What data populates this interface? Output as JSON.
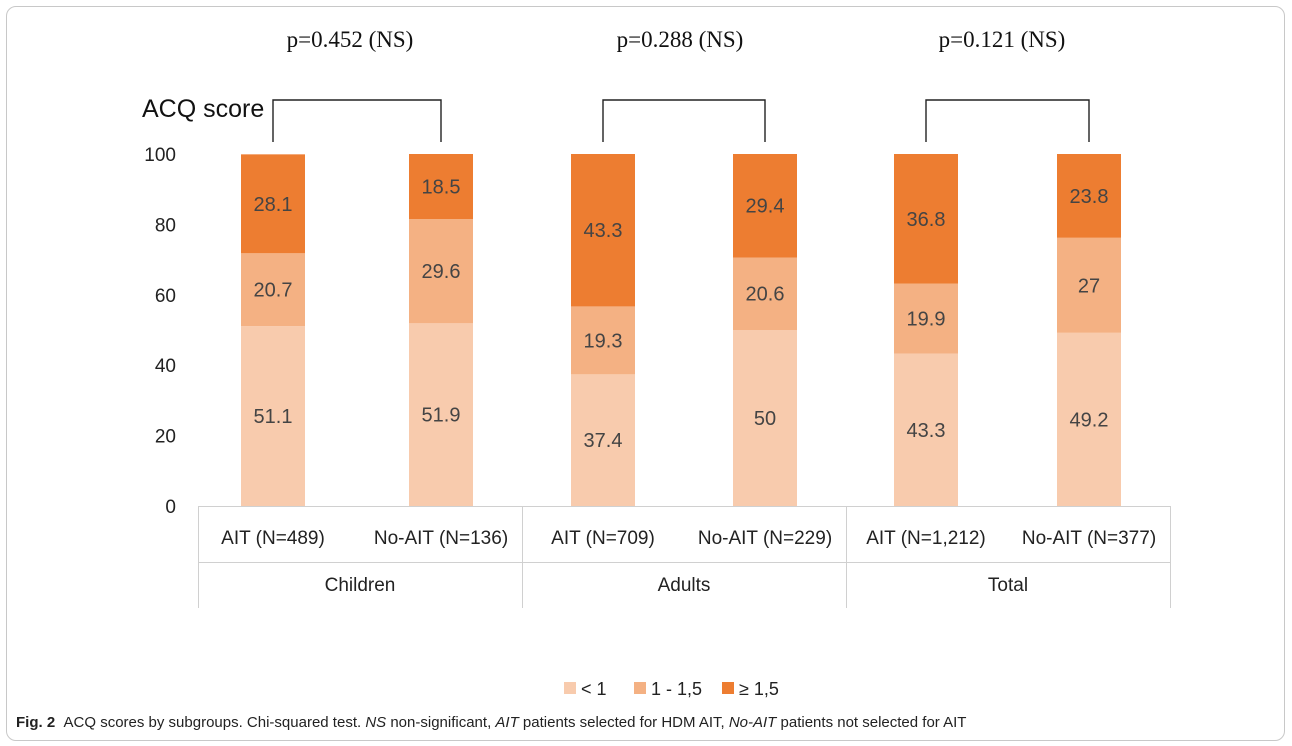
{
  "chart_data": {
    "type": "bar",
    "stacked": true,
    "ylabel": "ACQ score",
    "ylim": [
      0,
      100
    ],
    "yticks": [
      0,
      20,
      40,
      60,
      80,
      100
    ],
    "groups": [
      "Children",
      "Adults",
      "Total"
    ],
    "categories": [
      "AIT (N=489)",
      "No-AIT (N=136)",
      "AIT (N=709)",
      "No-AIT (N=229)",
      "AIT (N=1,212)",
      "No-AIT (N=377)"
    ],
    "series": [
      {
        "name": "< 1",
        "color": "#f8cbad",
        "values": [
          51.1,
          51.9,
          37.4,
          50,
          43.3,
          49.2
        ],
        "labels": [
          "51.1",
          "51.9",
          "37.4",
          "50",
          "43.3",
          "49.2"
        ]
      },
      {
        "name": "1 - 1,5",
        "color": "#f4b183",
        "values": [
          20.7,
          29.6,
          19.3,
          20.6,
          19.9,
          27
        ],
        "labels": [
          "20.7",
          "29.6",
          "19.3",
          "20.6",
          "19.9",
          "27"
        ]
      },
      {
        "name": "≥ 1,5",
        "color": "#ed7d31",
        "values": [
          28.1,
          18.5,
          43.3,
          29.4,
          36.8,
          23.8
        ],
        "labels": [
          "28.1",
          "18.5",
          "43.3",
          "29.4",
          "36.8",
          "23.8"
        ]
      }
    ],
    "comparisons": [
      "p=0.452 (NS)",
      "p=0.288 (NS)",
      "p=0.121 (NS)"
    ],
    "legend_position": "bottom",
    "grid": false
  },
  "caption": {
    "fig": "Fig. 2",
    "text1": "ACQ scores by subgroups. Chi-squared test. ",
    "ns": "NS",
    "text2": " non-significant, ",
    "ait": "AIT",
    "text3": " patients selected for HDM AIT, ",
    "noait": "No-AIT",
    "text4": " patients not selected for AIT"
  }
}
